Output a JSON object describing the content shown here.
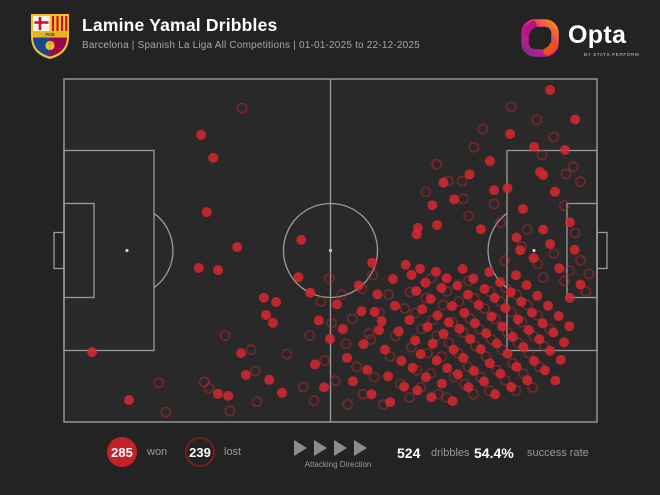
{
  "header": {
    "title": "Lamine Yamal Dribbles",
    "subtitle": "Barcelona | Spanish La Liga All Competitions | 01-01-2025 to 22-12-2025",
    "club_badge_icon": "fc-barcelona-crest",
    "club_badge_initials": "FCB"
  },
  "branding": {
    "logo_icon": "opta-logo",
    "wordmark": "Opta",
    "byline": "BY STATS PERFORM"
  },
  "legend": {
    "won": {
      "value": "285",
      "label": "won"
    },
    "lost": {
      "value": "239",
      "label": "lost"
    },
    "attacking_direction_label": "Attacking Direction",
    "total": {
      "value": "524",
      "label": "dribbles"
    },
    "success": {
      "value": "54.4%",
      "label": "success rate"
    }
  },
  "colors": {
    "background": "#232323",
    "pitch_fill": "#29292a",
    "pitch_line": "#9b9b9b",
    "dot_won": "#d7282f",
    "dot_lost": "#c0272e",
    "won_badge": "#c22127",
    "lost_badge_ring": "#7e1d23"
  },
  "chart_data": {
    "type": "scatter",
    "title": "Lamine Yamal Dribbles",
    "legend_entries": [
      "won (solid red dot)",
      "lost (red ring)"
    ],
    "coordinate_system": "percent of pitch; x: 0 = own goal line (left), 100 = opponent goal line (right); y: 0 = top touchline, 100 = bottom touchline; attacking left to right",
    "summary": {
      "dribbles_won": 285,
      "dribbles_lost": 239,
      "total_dribbles": 524,
      "success_rate_pct": 54.4
    },
    "won_points": [
      [
        25.7,
        16.3
      ],
      [
        28,
        23
      ],
      [
        26.8,
        38.8
      ],
      [
        32.5,
        49
      ],
      [
        5.3,
        79.6
      ],
      [
        12.2,
        93.6
      ],
      [
        25.3,
        55.1
      ],
      [
        28.9,
        55.7
      ],
      [
        44.5,
        46.9
      ],
      [
        44,
        57.8
      ],
      [
        37.5,
        63.8
      ],
      [
        39.8,
        65
      ],
      [
        37.9,
        68.8
      ],
      [
        39.2,
        71.1
      ],
      [
        28.9,
        91.8
      ],
      [
        30.8,
        92.4
      ],
      [
        34.1,
        86.3
      ],
      [
        38.5,
        87.7
      ],
      [
        40.9,
        91.5
      ],
      [
        33.2,
        79.9
      ],
      [
        46.2,
        62.3
      ],
      [
        47.8,
        70.4
      ],
      [
        49.9,
        75.8
      ],
      [
        47.1,
        83.2
      ],
      [
        48.8,
        89.9
      ],
      [
        51.2,
        65.7
      ],
      [
        52.3,
        72.9
      ],
      [
        53.1,
        81.3
      ],
      [
        54.2,
        88.1
      ],
      [
        55.3,
        60.2
      ],
      [
        55.8,
        67.7
      ],
      [
        56.2,
        77.3
      ],
      [
        56.9,
        84.8
      ],
      [
        57.7,
        91.9
      ],
      [
        58.8,
        62.8
      ],
      [
        59.6,
        70.6
      ],
      [
        60.2,
        78.9
      ],
      [
        60.8,
        86.7
      ],
      [
        61.7,
        58.3
      ],
      [
        62.1,
        66.1
      ],
      [
        62.8,
        73.6
      ],
      [
        63.3,
        82.2
      ],
      [
        63.8,
        89.7
      ],
      [
        57.8,
        53.6
      ],
      [
        58.3,
        67.9
      ],
      [
        59.1,
        73.2
      ],
      [
        64.1,
        54.2
      ],
      [
        66.2,
        45.3
      ],
      [
        61.2,
        94.2
      ],
      [
        65.2,
        57.1
      ],
      [
        64.8,
        70.3
      ],
      [
        65.4,
        84.2
      ],
      [
        66.1,
        61.8
      ],
      [
        65.9,
        76.2
      ],
      [
        66.3,
        90.8
      ],
      [
        66.8,
        55.3
      ],
      [
        67.2,
        67.1
      ],
      [
        66.9,
        80.2
      ],
      [
        67.8,
        59.4
      ],
      [
        68.2,
        72.3
      ],
      [
        67.9,
        86.9
      ],
      [
        68.8,
        64.1
      ],
      [
        69.2,
        77.2
      ],
      [
        68.9,
        92.8
      ],
      [
        69.8,
        56.2
      ],
      [
        70.1,
        68.9
      ],
      [
        69.9,
        82.1
      ],
      [
        70.8,
        60.9
      ],
      [
        71.2,
        74.3
      ],
      [
        70.9,
        88.8
      ],
      [
        71.8,
        58.1
      ],
      [
        72.2,
        70.9
      ],
      [
        71.9,
        84.3
      ],
      [
        72.8,
        66.2
      ],
      [
        73.1,
        78.9
      ],
      [
        72.9,
        93.9
      ],
      [
        73.8,
        60.2
      ],
      [
        74.2,
        72.8
      ],
      [
        73.9,
        86.1
      ],
      [
        74.8,
        55.4
      ],
      [
        75.1,
        68.2
      ],
      [
        74.9,
        81.3
      ],
      [
        75.8,
        62.9
      ],
      [
        76.2,
        75.8
      ],
      [
        75.9,
        89.9
      ],
      [
        76.8,
        58.2
      ],
      [
        77.1,
        71.2
      ],
      [
        76.9,
        85.1
      ],
      [
        77.8,
        65.9
      ],
      [
        78.2,
        78.8
      ],
      [
        78.9,
        61.2
      ],
      [
        79.2,
        74.1
      ],
      [
        78.8,
        88.2
      ],
      [
        79.8,
        56.3
      ],
      [
        80.2,
        69.2
      ],
      [
        79.9,
        82.9
      ],
      [
        80.8,
        63.8
      ],
      [
        81.2,
        77.1
      ],
      [
        80.9,
        91.9
      ],
      [
        81.8,
        59.2
      ],
      [
        82.2,
        72.2
      ],
      [
        81.9,
        85.9
      ],
      [
        82.8,
        66.8
      ],
      [
        83.2,
        80.1
      ],
      [
        83.8,
        62.2
      ],
      [
        84.2,
        75.2
      ],
      [
        83.9,
        89.8
      ],
      [
        84.8,
        57.2
      ],
      [
        85.2,
        70.1
      ],
      [
        84.9,
        83.9
      ],
      [
        85.8,
        64.9
      ],
      [
        86.2,
        78.2
      ],
      [
        86.8,
        60.1
      ],
      [
        87.2,
        73.2
      ],
      [
        86.9,
        87.8
      ],
      [
        87.8,
        68.1
      ],
      [
        88.2,
        82.2
      ],
      [
        88.8,
        63.2
      ],
      [
        89.2,
        75.9
      ],
      [
        89.8,
        71.2
      ],
      [
        90.2,
        84.9
      ],
      [
        90.8,
        66.1
      ],
      [
        91.2,
        79.2
      ],
      [
        91.8,
        73.9
      ],
      [
        92.2,
        87.9
      ],
      [
        92.8,
        69.1
      ],
      [
        93.2,
        81.9
      ],
      [
        93.8,
        76.8
      ],
      [
        94.8,
        72.1
      ],
      [
        91.2,
        3.2
      ],
      [
        83.7,
        16
      ],
      [
        94,
        20.7
      ],
      [
        89.3,
        27.1
      ],
      [
        89.9,
        28
      ],
      [
        80.7,
        32.4
      ],
      [
        66.4,
        43.4
      ],
      [
        70,
        42.6
      ],
      [
        73.2,
        35.1
      ],
      [
        76.1,
        27.8
      ],
      [
        79.9,
        23.9
      ],
      [
        83.2,
        31.8
      ],
      [
        86.1,
        37.9
      ],
      [
        88.2,
        19.8
      ],
      [
        92.1,
        32.9
      ],
      [
        94.9,
        41.8
      ],
      [
        78.2,
        43.8
      ],
      [
        71.2,
        30.2
      ],
      [
        69.1,
        36.8
      ],
      [
        95.9,
        11.8
      ],
      [
        85.6,
        49.9
      ],
      [
        88.1,
        52.2
      ],
      [
        91.2,
        48.1
      ],
      [
        92.9,
        55.2
      ],
      [
        95.8,
        49.8
      ],
      [
        84.9,
        46.2
      ],
      [
        96.9,
        59.9
      ],
      [
        94.9,
        63.8
      ],
      [
        89.9,
        43.9
      ]
    ],
    "lost_points": [
      [
        33.4,
        8.5
      ],
      [
        17.8,
        88.6
      ],
      [
        19.1,
        97.1
      ],
      [
        26.3,
        88.3
      ],
      [
        27.2,
        90.1
      ],
      [
        31.1,
        96.8
      ],
      [
        36.2,
        94.1
      ],
      [
        35.9,
        85.2
      ],
      [
        35.1,
        78.9
      ],
      [
        30.2,
        74.8
      ],
      [
        41.8,
        80.2
      ],
      [
        44.9,
        89.8
      ],
      [
        46.1,
        74.8
      ],
      [
        46.9,
        93.8
      ],
      [
        48.2,
        64.9
      ],
      [
        48.9,
        82.1
      ],
      [
        49.8,
        58.2
      ],
      [
        50.2,
        71.1
      ],
      [
        50.9,
        87.9
      ],
      [
        52.1,
        62.9
      ],
      [
        52.9,
        77.2
      ],
      [
        53.2,
        94.9
      ],
      [
        54.1,
        69.9
      ],
      [
        54.9,
        83.9
      ],
      [
        55.9,
        61.1
      ],
      [
        56.1,
        91.9
      ],
      [
        57.2,
        74.2
      ],
      [
        57.9,
        57.2
      ],
      [
        58.2,
        86.9
      ],
      [
        59.2,
        68.2
      ],
      [
        59.9,
        94.9
      ],
      [
        60.9,
        62.9
      ],
      [
        61.2,
        80.9
      ],
      [
        62.2,
        74.9
      ],
      [
        63.1,
        88.9
      ],
      [
        63.9,
        66.9
      ],
      [
        57.6,
        75.9
      ],
      [
        64.9,
        62.1
      ],
      [
        65.2,
        78.2
      ],
      [
        64.8,
        92.9
      ],
      [
        65.9,
        68.2
      ],
      [
        66.2,
        84.9
      ],
      [
        67.1,
        72.9
      ],
      [
        66.9,
        89.9
      ],
      [
        67.9,
        63.9
      ],
      [
        68.2,
        79.9
      ],
      [
        68.9,
        58.1
      ],
      [
        69.2,
        70.2
      ],
      [
        68.8,
        85.9
      ],
      [
        69.9,
        74.9
      ],
      [
        70.2,
        91.9
      ],
      [
        71.1,
        65.9
      ],
      [
        70.9,
        80.9
      ],
      [
        71.9,
        61.9
      ],
      [
        72.2,
        76.9
      ],
      [
        71.8,
        92.9
      ],
      [
        72.9,
        70.9
      ],
      [
        73.2,
        86.9
      ],
      [
        74.1,
        64.9
      ],
      [
        73.9,
        79.9
      ],
      [
        74.9,
        73.9
      ],
      [
        75.2,
        88.9
      ],
      [
        75.9,
        58.9
      ],
      [
        76.2,
        69.9
      ],
      [
        75.8,
        83.9
      ],
      [
        76.9,
        63.9
      ],
      [
        77.2,
        77.9
      ],
      [
        76.8,
        91.9
      ],
      [
        77.9,
        72.9
      ],
      [
        78.2,
        86.9
      ],
      [
        78.9,
        66.9
      ],
      [
        79.2,
        80.9
      ],
      [
        79.9,
        61.9
      ],
      [
        80.2,
        75.9
      ],
      [
        79.8,
        90.9
      ],
      [
        80.9,
        69.9
      ],
      [
        81.2,
        84.9
      ],
      [
        81.9,
        64.9
      ],
      [
        82.2,
        78.9
      ],
      [
        82.9,
        60.9
      ],
      [
        83.2,
        73.9
      ],
      [
        82.8,
        87.9
      ],
      [
        83.9,
        67.9
      ],
      [
        84.2,
        82.9
      ],
      [
        84.9,
        62.9
      ],
      [
        85.2,
        76.9
      ],
      [
        84.8,
        90.9
      ],
      [
        85.9,
        70.9
      ],
      [
        86.2,
        85.9
      ],
      [
        86.9,
        65.9
      ],
      [
        87.2,
        79.9
      ],
      [
        88.1,
        74.9
      ],
      [
        87.9,
        89.9
      ],
      [
        88.9,
        68.9
      ],
      [
        89.2,
        83.9
      ],
      [
        90.1,
        77.9
      ],
      [
        91.1,
        72.9
      ],
      [
        88.7,
        11.9
      ],
      [
        78.6,
        14.6
      ],
      [
        89.7,
        22.2
      ],
      [
        94.2,
        27.7
      ],
      [
        95.5,
        25.6
      ],
      [
        72.1,
        29.7
      ],
      [
        74.7,
        29.7
      ],
      [
        74.9,
        34.9
      ],
      [
        80.7,
        36.4
      ],
      [
        83.9,
        8.1
      ],
      [
        76.9,
        19.9
      ],
      [
        69.9,
        24.9
      ],
      [
        91.9,
        16.9
      ],
      [
        96.9,
        29.9
      ],
      [
        67.9,
        32.9
      ],
      [
        81.9,
        41.9
      ],
      [
        75.9,
        39.9
      ],
      [
        93.9,
        36.9
      ],
      [
        82.7,
        52.9
      ],
      [
        94.9,
        55.9
      ],
      [
        85.9,
        48.9
      ],
      [
        88.9,
        53.9
      ],
      [
        91.9,
        50.9
      ],
      [
        93.9,
        58.9
      ],
      [
        96.9,
        52.9
      ],
      [
        98.5,
        56.9
      ],
      [
        86.9,
        43.9
      ],
      [
        89.9,
        57.9
      ],
      [
        95.9,
        44.9
      ],
      [
        97.9,
        61.9
      ]
    ]
  }
}
